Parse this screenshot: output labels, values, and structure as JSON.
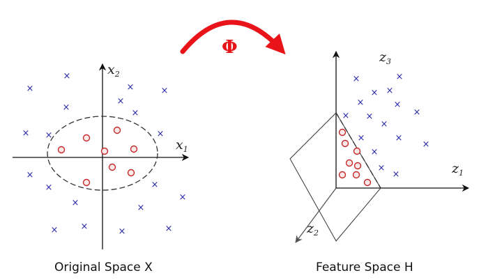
{
  "mapping": {
    "symbol": "Φ",
    "color": "#e8141a"
  },
  "left_panel": {
    "caption": "Original Space X",
    "x_axis": {
      "base": "x",
      "sub": "1"
    },
    "y_axis": {
      "base": "x",
      "sub": "2"
    }
  },
  "right_panel": {
    "caption": "Feature Space H",
    "z1_axis": {
      "base": "z",
      "sub": "1"
    },
    "z2_axis": {
      "base": "z",
      "sub": "2"
    },
    "z3_axis": {
      "base": "z",
      "sub": "3"
    }
  },
  "markers": {
    "cross_glyph": "×",
    "cross_color": "#2a2aa8",
    "circle_color": "#c62828"
  }
}
